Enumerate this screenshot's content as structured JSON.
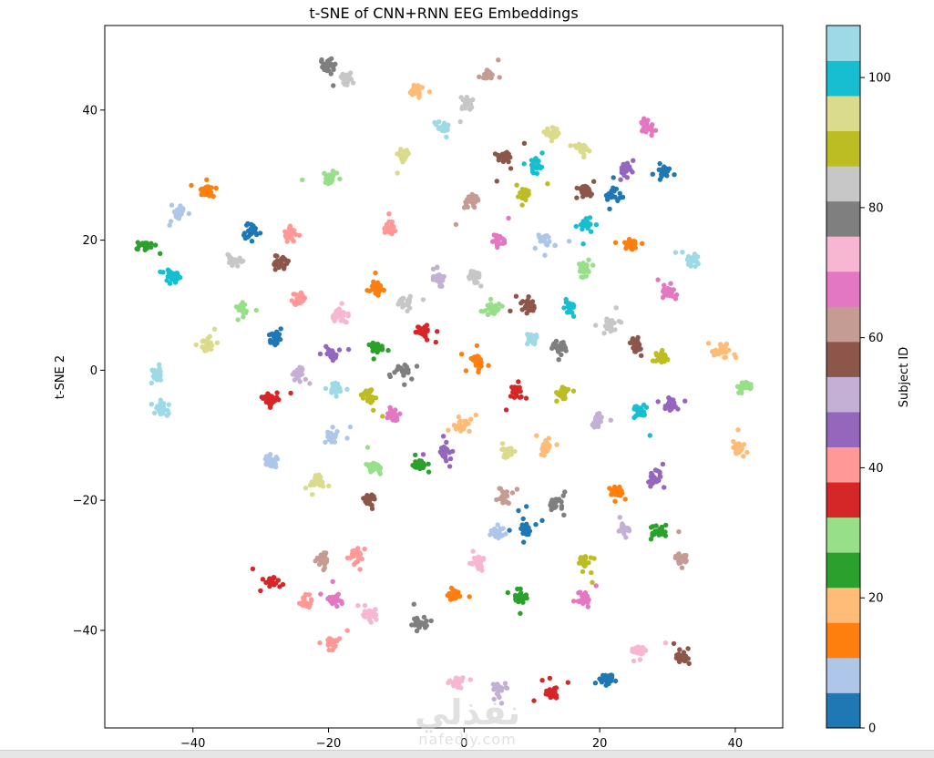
{
  "chart_data": {
    "type": "scatter",
    "title": "t-SNE of CNN+RNN EEG Embeddings",
    "xlabel": "",
    "ylabel": "t-SNE 2",
    "xlim": [
      -53,
      47
    ],
    "ylim": [
      -55,
      53
    ],
    "xticks": [
      -40,
      -20,
      0,
      20,
      40
    ],
    "yticks": [
      -40,
      -20,
      0,
      20,
      40
    ],
    "grid": false,
    "colorbar": {
      "label": "Subject ID",
      "range": [
        0,
        108
      ],
      "ticks": [
        0,
        20,
        40,
        60,
        80,
        100
      ],
      "colormap": "tab20",
      "colors": [
        "#1f77b4",
        "#aec7e8",
        "#ff7f0e",
        "#ffbb78",
        "#2ca02c",
        "#98df8a",
        "#d62728",
        "#ff9896",
        "#9467bd",
        "#c5b0d5",
        "#8c564b",
        "#c49c94",
        "#e377c2",
        "#f7b6d2",
        "#7f7f7f",
        "#c7c7c7",
        "#bcbd22",
        "#dbdb8d",
        "#17becf",
        "#9edae5"
      ]
    },
    "clusters": [
      {
        "x": -20,
        "y": 47,
        "c": 14
      },
      {
        "x": -17.5,
        "y": 45,
        "c": 15
      },
      {
        "x": -7,
        "y": 43,
        "c": 3
      },
      {
        "x": 0.5,
        "y": 41,
        "c": 15
      },
      {
        "x": 3.5,
        "y": 45.5,
        "c": 11
      },
      {
        "x": -3,
        "y": 37.5,
        "c": 19
      },
      {
        "x": 13,
        "y": 36.5,
        "c": 17
      },
      {
        "x": 17.5,
        "y": 34,
        "c": 17
      },
      {
        "x": 27,
        "y": 37.5,
        "c": 12
      },
      {
        "x": -9,
        "y": 33,
        "c": 17
      },
      {
        "x": 6,
        "y": 33,
        "c": 10
      },
      {
        "x": 10.5,
        "y": 31.5,
        "c": 18
      },
      {
        "x": 24,
        "y": 31,
        "c": 8
      },
      {
        "x": 29.5,
        "y": 30.5,
        "c": 0
      },
      {
        "x": -20,
        "y": 29.5,
        "c": 5
      },
      {
        "x": -38,
        "y": 27.5,
        "c": 2
      },
      {
        "x": -42,
        "y": 24,
        "c": 1
      },
      {
        "x": 1,
        "y": 26,
        "c": 11
      },
      {
        "x": 9,
        "y": 27,
        "c": 16
      },
      {
        "x": 18,
        "y": 27.5,
        "c": 10
      },
      {
        "x": 22,
        "y": 27,
        "c": 0
      },
      {
        "x": 18,
        "y": 22.5,
        "c": 18
      },
      {
        "x": -31.5,
        "y": 21.5,
        "c": 0
      },
      {
        "x": -25.5,
        "y": 21,
        "c": 7
      },
      {
        "x": -11,
        "y": 22,
        "c": 7
      },
      {
        "x": 5,
        "y": 20,
        "c": 12
      },
      {
        "x": 12,
        "y": 20,
        "c": 1
      },
      {
        "x": 24.5,
        "y": 19.5,
        "c": 2
      },
      {
        "x": -47,
        "y": 19,
        "c": 4
      },
      {
        "x": -43,
        "y": 14.5,
        "c": 18
      },
      {
        "x": -34,
        "y": 17,
        "c": 15
      },
      {
        "x": -27,
        "y": 16.5,
        "c": 10
      },
      {
        "x": -4,
        "y": 14.5,
        "c": 9
      },
      {
        "x": 1.5,
        "y": 14.5,
        "c": 15
      },
      {
        "x": 18,
        "y": 15.5,
        "c": 5
      },
      {
        "x": 33.5,
        "y": 17,
        "c": 19
      },
      {
        "x": -13,
        "y": 12.5,
        "c": 2
      },
      {
        "x": -24.5,
        "y": 11,
        "c": 7
      },
      {
        "x": -8.5,
        "y": 10.5,
        "c": 15
      },
      {
        "x": 30,
        "y": 12,
        "c": 12
      },
      {
        "x": -32.5,
        "y": 9.5,
        "c": 5
      },
      {
        "x": -18.5,
        "y": 8.5,
        "c": 13
      },
      {
        "x": 4,
        "y": 9.5,
        "c": 5
      },
      {
        "x": 9.5,
        "y": 10,
        "c": 10
      },
      {
        "x": 15.5,
        "y": 9.5,
        "c": 18
      },
      {
        "x": -28,
        "y": 5,
        "c": 0
      },
      {
        "x": -38,
        "y": 4,
        "c": 17
      },
      {
        "x": -6,
        "y": 6,
        "c": 6
      },
      {
        "x": 10,
        "y": 5,
        "c": 19
      },
      {
        "x": 21.5,
        "y": 7,
        "c": 15
      },
      {
        "x": 25.5,
        "y": 4,
        "c": 10
      },
      {
        "x": -19.5,
        "y": 2.5,
        "c": 8
      },
      {
        "x": -13,
        "y": 3.5,
        "c": 4
      },
      {
        "x": 2,
        "y": 1.5,
        "c": 2
      },
      {
        "x": 14,
        "y": 3.5,
        "c": 14
      },
      {
        "x": 29,
        "y": 2,
        "c": 16
      },
      {
        "x": 38,
        "y": 3,
        "c": 3
      },
      {
        "x": -45.5,
        "y": -0.5,
        "c": 19
      },
      {
        "x": -24.5,
        "y": -0.5,
        "c": 9
      },
      {
        "x": -9,
        "y": 0,
        "c": 14
      },
      {
        "x": -44.5,
        "y": -6,
        "c": 19
      },
      {
        "x": -28.5,
        "y": -4.5,
        "c": 6
      },
      {
        "x": -19,
        "y": -3,
        "c": 19
      },
      {
        "x": -14,
        "y": -4,
        "c": 16
      },
      {
        "x": 7.5,
        "y": -3.5,
        "c": 6
      },
      {
        "x": 14.5,
        "y": -3.5,
        "c": 16
      },
      {
        "x": 41.5,
        "y": -2.5,
        "c": 5
      },
      {
        "x": -10.5,
        "y": -7,
        "c": 12
      },
      {
        "x": -0.5,
        "y": -8.5,
        "c": 3
      },
      {
        "x": 19.5,
        "y": -8,
        "c": 9
      },
      {
        "x": 26,
        "y": -6.5,
        "c": 18
      },
      {
        "x": 30.5,
        "y": -5.5,
        "c": 8
      },
      {
        "x": -19.5,
        "y": -10,
        "c": 1
      },
      {
        "x": 6.5,
        "y": -12.5,
        "c": 17
      },
      {
        "x": 12,
        "y": -12,
        "c": 3
      },
      {
        "x": 40.5,
        "y": -12,
        "c": 3
      },
      {
        "x": -28.5,
        "y": -14,
        "c": 1
      },
      {
        "x": -13.5,
        "y": -15,
        "c": 5
      },
      {
        "x": -6.5,
        "y": -14.5,
        "c": 4
      },
      {
        "x": -3,
        "y": -12.5,
        "c": 8
      },
      {
        "x": -21.5,
        "y": -17,
        "c": 17
      },
      {
        "x": 28,
        "y": -16.5,
        "c": 8
      },
      {
        "x": 22.5,
        "y": -18.5,
        "c": 2
      },
      {
        "x": -14,
        "y": -20,
        "c": 10
      },
      {
        "x": 6,
        "y": -19.5,
        "c": 11
      },
      {
        "x": 13.5,
        "y": -20.5,
        "c": 14
      },
      {
        "x": 9,
        "y": -24.5,
        "c": 0
      },
      {
        "x": 5,
        "y": -25,
        "c": 1
      },
      {
        "x": 23.5,
        "y": -24.5,
        "c": 9
      },
      {
        "x": 28.5,
        "y": -25,
        "c": 4
      },
      {
        "x": -21,
        "y": -29,
        "c": 11
      },
      {
        "x": -16,
        "y": -28.5,
        "c": 7
      },
      {
        "x": 2,
        "y": -29.5,
        "c": 13
      },
      {
        "x": 17.5,
        "y": -29.5,
        "c": 16
      },
      {
        "x": 32,
        "y": -29,
        "c": 11
      },
      {
        "x": -28.5,
        "y": -32.5,
        "c": 6
      },
      {
        "x": -23.5,
        "y": -35.5,
        "c": 7
      },
      {
        "x": -19,
        "y": -35.5,
        "c": 12
      },
      {
        "x": -1.5,
        "y": -34.5,
        "c": 2
      },
      {
        "x": 8.5,
        "y": -35,
        "c": 4
      },
      {
        "x": 17.5,
        "y": -35,
        "c": 12
      },
      {
        "x": -14,
        "y": -37.5,
        "c": 13
      },
      {
        "x": -6.5,
        "y": -39,
        "c": 14
      },
      {
        "x": -19.5,
        "y": -42,
        "c": 7
      },
      {
        "x": 26,
        "y": -43,
        "c": 13
      },
      {
        "x": 32,
        "y": -44,
        "c": 10
      },
      {
        "x": -1,
        "y": -48,
        "c": 13
      },
      {
        "x": 5,
        "y": -49,
        "c": 9
      },
      {
        "x": 13,
        "y": -49.5,
        "c": 6
      },
      {
        "x": 21,
        "y": -47.5,
        "c": 0
      }
    ]
  },
  "watermark": {
    "main": "نفذلي",
    "sub": "nafedly.com"
  }
}
